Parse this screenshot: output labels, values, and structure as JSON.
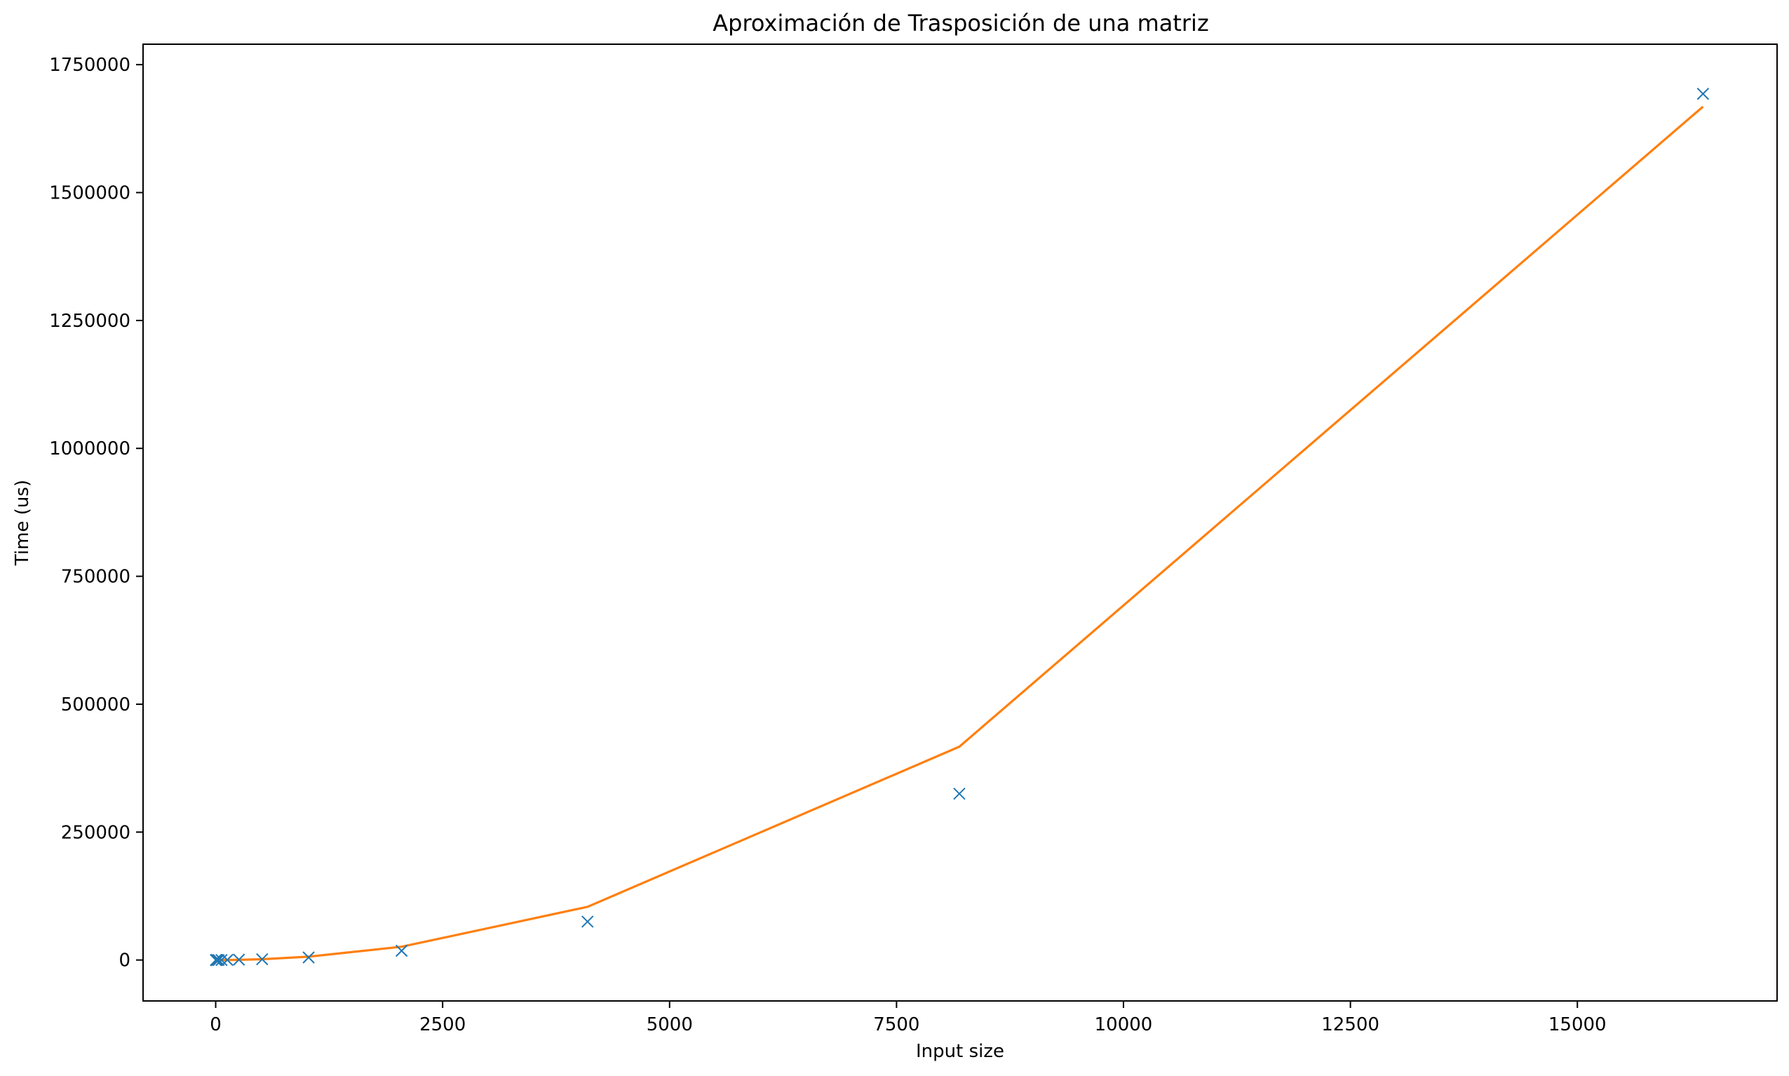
{
  "chart_data": {
    "type": "line",
    "title": "Aproximación de Trasposición de una matriz",
    "xlabel": "Input size",
    "ylabel": "Time (us)",
    "xlim": [
      -800,
      17200
    ],
    "ylim": [
      -80000,
      1790000
    ],
    "xticks": [
      0,
      2500,
      5000,
      7500,
      10000,
      12500,
      15000
    ],
    "xtick_labels": [
      "0",
      "2500",
      "5000",
      "7500",
      "10000",
      "12500",
      "15000"
    ],
    "yticks": [
      0,
      250000,
      500000,
      750000,
      1000000,
      1250000,
      1500000,
      1750000
    ],
    "ytick_labels": [
      "0",
      "250000",
      "500000",
      "750000",
      "1000000",
      "1250000",
      "1500000",
      "1750000"
    ],
    "grid": false,
    "series": [
      {
        "kind": "scatter",
        "marker": "x",
        "color": "#1f77b4",
        "x": [
          2,
          4,
          8,
          16,
          32,
          64,
          128,
          256,
          512,
          1024,
          2048,
          4096,
          8192,
          16384
        ],
        "y": [
          0,
          0,
          0,
          0,
          0,
          0,
          200,
          700,
          1500,
          5000,
          18000,
          75000,
          325000,
          1693000
        ]
      },
      {
        "kind": "line",
        "color": "#ff7f0e",
        "x": [
          2,
          4,
          8,
          16,
          32,
          64,
          128,
          256,
          512,
          1024,
          2048,
          4096,
          8192,
          16384
        ],
        "y": [
          0,
          0,
          0,
          0,
          0,
          0,
          100,
          400,
          1600,
          6500,
          26000,
          104000,
          417000,
          1668000
        ]
      }
    ]
  }
}
